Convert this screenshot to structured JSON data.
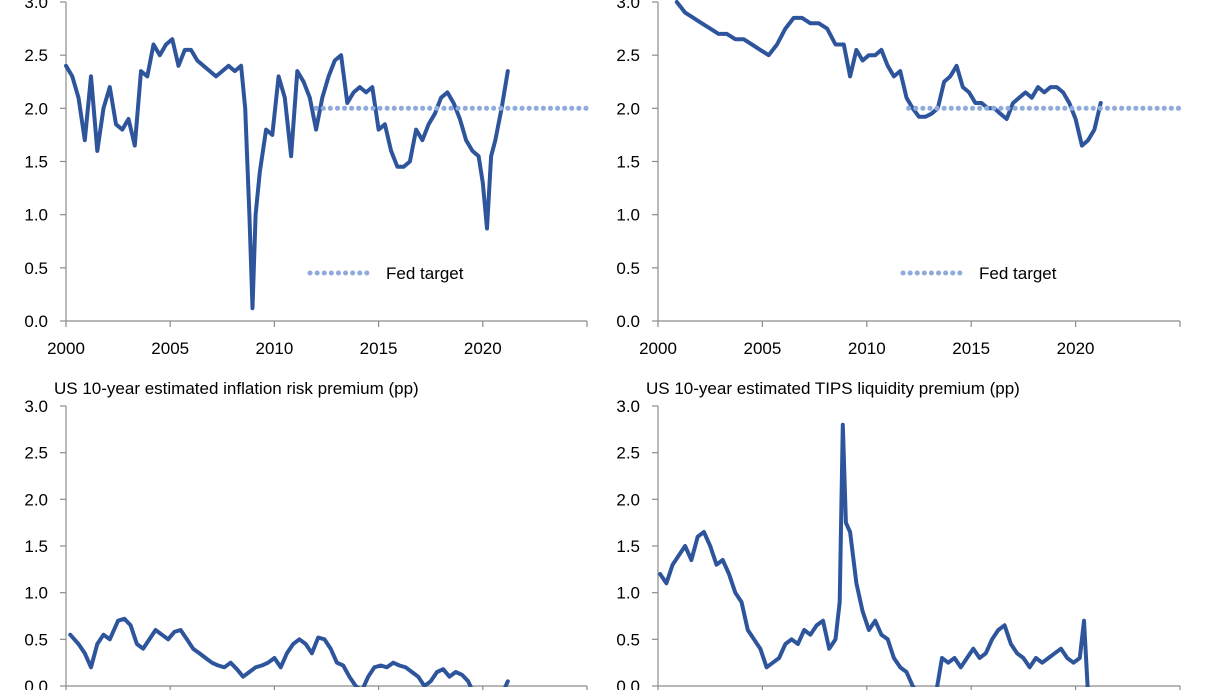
{
  "chart_data": [
    {
      "id": "tl",
      "type": "line",
      "title": "",
      "xlabel": "",
      "ylabel": "",
      "xlim": [
        2000,
        2025
      ],
      "ylim": [
        0,
        3
      ],
      "x_ticks": [
        "2000",
        "2005",
        "2010",
        "2015",
        "2020"
      ],
      "y_ticks": [
        "0.0",
        "0.5",
        "1.0",
        "1.5",
        "2.0",
        "2.5",
        "3.0"
      ],
      "grid": false,
      "legend": [
        {
          "label": "Fed target",
          "series": "target"
        }
      ],
      "series": [
        {
          "key": "main",
          "name": "",
          "color": "#2e559c",
          "x": [
            2000.0,
            2000.3,
            2000.6,
            2000.9,
            2001.2,
            2001.5,
            2001.8,
            2002.1,
            2002.4,
            2002.7,
            2003.0,
            2003.3,
            2003.6,
            2003.9,
            2004.2,
            2004.5,
            2004.8,
            2005.1,
            2005.4,
            2005.7,
            2006.0,
            2006.3,
            2006.6,
            2006.9,
            2007.2,
            2007.5,
            2007.8,
            2008.1,
            2008.4,
            2008.6,
            2008.8,
            2008.95,
            2009.1,
            2009.3,
            2009.6,
            2009.9,
            2010.2,
            2010.5,
            2010.8,
            2011.1,
            2011.4,
            2011.7,
            2012.0,
            2012.3,
            2012.6,
            2012.9,
            2013.2,
            2013.5,
            2013.8,
            2014.1,
            2014.4,
            2014.7,
            2015.0,
            2015.3,
            2015.6,
            2015.9,
            2016.2,
            2016.5,
            2016.8,
            2017.1,
            2017.4,
            2017.7,
            2018.0,
            2018.3,
            2018.6,
            2018.9,
            2019.2,
            2019.5,
            2019.8,
            2020.0,
            2020.2,
            2020.4,
            2020.6,
            2020.9,
            2021.2
          ],
          "y": [
            2.4,
            2.3,
            2.1,
            1.7,
            2.3,
            1.6,
            2.0,
            2.2,
            1.85,
            1.8,
            1.9,
            1.65,
            2.35,
            2.3,
            2.6,
            2.5,
            2.6,
            2.65,
            2.4,
            2.55,
            2.55,
            2.45,
            2.4,
            2.35,
            2.3,
            2.35,
            2.4,
            2.35,
            2.4,
            2.0,
            1.0,
            0.12,
            1.0,
            1.4,
            1.8,
            1.75,
            2.3,
            2.1,
            1.55,
            2.35,
            2.25,
            2.1,
            1.8,
            2.1,
            2.3,
            2.45,
            2.5,
            2.05,
            2.15,
            2.2,
            2.15,
            2.2,
            1.8,
            1.85,
            1.6,
            1.45,
            1.45,
            1.5,
            1.8,
            1.7,
            1.85,
            1.95,
            2.1,
            2.15,
            2.05,
            1.9,
            1.7,
            1.6,
            1.55,
            1.3,
            0.87,
            1.55,
            1.7,
            2.0,
            2.35
          ]
        },
        {
          "key": "target",
          "name": "Fed target",
          "color": "#8faadc",
          "style": "dotted",
          "x": [
            2012.0,
            2025.0
          ],
          "y": [
            2.0,
            2.0
          ]
        }
      ]
    },
    {
      "id": "tr",
      "type": "line",
      "title": "",
      "xlabel": "",
      "ylabel": "",
      "xlim": [
        2000,
        2025
      ],
      "ylim": [
        0,
        3
      ],
      "x_ticks": [
        "2000",
        "2005",
        "2010",
        "2015",
        "2020"
      ],
      "y_ticks": [
        "0.0",
        "0.5",
        "1.0",
        "1.5",
        "2.0",
        "2.5",
        "3.0"
      ],
      "grid": false,
      "legend": [
        {
          "label": "Fed target",
          "series": "target"
        }
      ],
      "series": [
        {
          "key": "main",
          "name": "",
          "color": "#2e559c",
          "x": [
            2000.9,
            2001.3,
            2001.7,
            2002.1,
            2002.5,
            2002.9,
            2003.3,
            2003.7,
            2004.1,
            2004.5,
            2004.9,
            2005.3,
            2005.7,
            2006.1,
            2006.5,
            2006.9,
            2007.3,
            2007.7,
            2008.1,
            2008.5,
            2008.9,
            2009.2,
            2009.5,
            2009.8,
            2010.1,
            2010.4,
            2010.7,
            2011.0,
            2011.3,
            2011.6,
            2011.9,
            2012.2,
            2012.5,
            2012.8,
            2013.1,
            2013.4,
            2013.7,
            2014.0,
            2014.3,
            2014.6,
            2014.9,
            2015.2,
            2015.5,
            2015.8,
            2016.1,
            2016.4,
            2016.7,
            2017.0,
            2017.3,
            2017.6,
            2017.9,
            2018.2,
            2018.5,
            2018.8,
            2019.1,
            2019.4,
            2019.7,
            2020.0,
            2020.3,
            2020.6,
            2020.9,
            2021.2
          ],
          "y": [
            3.0,
            2.9,
            2.85,
            2.8,
            2.75,
            2.7,
            2.7,
            2.65,
            2.65,
            2.6,
            2.55,
            2.5,
            2.6,
            2.75,
            2.85,
            2.85,
            2.8,
            2.8,
            2.75,
            2.6,
            2.6,
            2.3,
            2.55,
            2.45,
            2.5,
            2.5,
            2.55,
            2.4,
            2.3,
            2.35,
            2.1,
            2.0,
            1.92,
            1.92,
            1.95,
            2.0,
            2.25,
            2.3,
            2.4,
            2.2,
            2.15,
            2.05,
            2.05,
            2.0,
            2.0,
            1.95,
            1.9,
            2.05,
            2.1,
            2.15,
            2.1,
            2.2,
            2.15,
            2.2,
            2.2,
            2.15,
            2.05,
            1.9,
            1.65,
            1.7,
            1.8,
            2.05
          ]
        },
        {
          "key": "target",
          "name": "Fed target",
          "color": "#8faadc",
          "style": "dotted",
          "x": [
            2012.0,
            2025.0
          ],
          "y": [
            2.0,
            2.0
          ]
        }
      ]
    },
    {
      "id": "bl",
      "type": "line",
      "title": "US 10-year estimated inflation risk premium (pp)",
      "xlabel": "",
      "ylabel": "",
      "xlim": [
        2000,
        2025
      ],
      "ylim": [
        0,
        3
      ],
      "x_ticks": [],
      "y_ticks": [
        "0.0",
        "0.5",
        "1.0",
        "1.5",
        "2.0",
        "2.5",
        "3.0"
      ],
      "grid": false,
      "series": [
        {
          "key": "main",
          "name": "",
          "color": "#2e559c",
          "x": [
            2000.2,
            2000.6,
            2000.9,
            2001.2,
            2001.5,
            2001.8,
            2002.1,
            2002.5,
            2002.8,
            2003.1,
            2003.4,
            2003.7,
            2004.0,
            2004.3,
            2004.6,
            2004.9,
            2005.2,
            2005.5,
            2005.8,
            2006.1,
            2006.4,
            2006.7,
            2007.0,
            2007.3,
            2007.6,
            2007.9,
            2008.2,
            2008.5,
            2008.8,
            2009.1,
            2009.4,
            2009.7,
            2010.0,
            2010.3,
            2010.6,
            2010.9,
            2011.2,
            2011.5,
            2011.8,
            2012.1,
            2012.4,
            2012.7,
            2013.0,
            2013.3,
            2013.6,
            2013.9,
            2014.2,
            2014.5,
            2014.8,
            2015.1,
            2015.4,
            2015.7,
            2016.0,
            2016.3,
            2016.6,
            2016.9,
            2017.2,
            2017.5,
            2017.8,
            2018.1,
            2018.4,
            2018.7,
            2019.0,
            2019.3,
            2019.6
          ],
          "y": [
            0.55,
            0.45,
            0.35,
            0.2,
            0.45,
            0.55,
            0.5,
            0.7,
            0.72,
            0.65,
            0.45,
            0.4,
            0.5,
            0.6,
            0.55,
            0.5,
            0.58,
            0.6,
            0.5,
            0.4,
            0.35,
            0.3,
            0.25,
            0.22,
            0.2,
            0.25,
            0.18,
            0.1,
            0.15,
            0.2,
            0.22,
            0.25,
            0.3,
            0.2,
            0.35,
            0.45,
            0.5,
            0.45,
            0.35,
            0.52,
            0.5,
            0.4,
            0.25,
            0.22,
            0.1,
            0.0,
            -0.05,
            0.1,
            0.2,
            0.22,
            0.2,
            0.25,
            0.22,
            0.2,
            0.15,
            0.1,
            0.0,
            0.05,
            0.15,
            0.18,
            0.1,
            0.15,
            0.12,
            0.05,
            -0.1
          ]
        },
        {
          "key": "tail",
          "name": "",
          "color": "#2e559c",
          "x": [
            2020.9,
            2021.2
          ],
          "y": [
            -0.1,
            0.05
          ]
        }
      ]
    },
    {
      "id": "br",
      "type": "line",
      "title": "US 10-year estimated TIPS liquidity premium (pp)",
      "xlabel": "",
      "ylabel": "",
      "xlim": [
        2000,
        2025
      ],
      "ylim": [
        0,
        3
      ],
      "x_ticks": [],
      "y_ticks": [
        "0.0",
        "0.5",
        "1.0",
        "1.5",
        "2.0",
        "2.5",
        "3.0"
      ],
      "grid": false,
      "series": [
        {
          "key": "main",
          "name": "",
          "color": "#2e559c",
          "x": [
            2000.1,
            2000.4,
            2000.7,
            2001.0,
            2001.3,
            2001.6,
            2001.9,
            2002.2,
            2002.5,
            2002.8,
            2003.1,
            2003.4,
            2003.7,
            2004.0,
            2004.3,
            2004.6,
            2004.9,
            2005.2,
            2005.5,
            2005.8,
            2006.1,
            2006.4,
            2006.7,
            2007.0,
            2007.3,
            2007.6,
            2007.9,
            2008.2,
            2008.5,
            2008.7,
            2008.85,
            2009.0,
            2009.2,
            2009.5,
            2009.8,
            2010.1,
            2010.4,
            2010.7,
            2011.0,
            2011.3,
            2011.6,
            2011.9,
            2012.2,
            2012.5
          ],
          "y": [
            1.2,
            1.1,
            1.3,
            1.4,
            1.5,
            1.35,
            1.6,
            1.65,
            1.5,
            1.3,
            1.35,
            1.2,
            1.0,
            0.9,
            0.6,
            0.5,
            0.4,
            0.2,
            0.25,
            0.3,
            0.45,
            0.5,
            0.45,
            0.6,
            0.55,
            0.65,
            0.7,
            0.4,
            0.5,
            0.9,
            2.8,
            1.75,
            1.65,
            1.1,
            0.8,
            0.6,
            0.7,
            0.55,
            0.5,
            0.3,
            0.2,
            0.15,
            0.0,
            -0.1
          ]
        },
        {
          "key": "main2",
          "name": "",
          "color": "#2e559c",
          "x": [
            2013.3,
            2013.6,
            2013.9,
            2014.2,
            2014.5,
            2014.8,
            2015.1,
            2015.4,
            2015.7,
            2016.0,
            2016.3,
            2016.6,
            2016.9,
            2017.2,
            2017.5,
            2017.8,
            2018.1,
            2018.4,
            2018.7,
            2019.0,
            2019.3,
            2019.6,
            2019.9,
            2020.2,
            2020.4,
            2020.6
          ],
          "y": [
            -0.1,
            0.3,
            0.25,
            0.3,
            0.2,
            0.3,
            0.4,
            0.3,
            0.35,
            0.5,
            0.6,
            0.65,
            0.45,
            0.35,
            0.3,
            0.2,
            0.3,
            0.25,
            0.3,
            0.35,
            0.4,
            0.3,
            0.25,
            0.3,
            0.7,
            -0.1
          ]
        }
      ]
    }
  ]
}
